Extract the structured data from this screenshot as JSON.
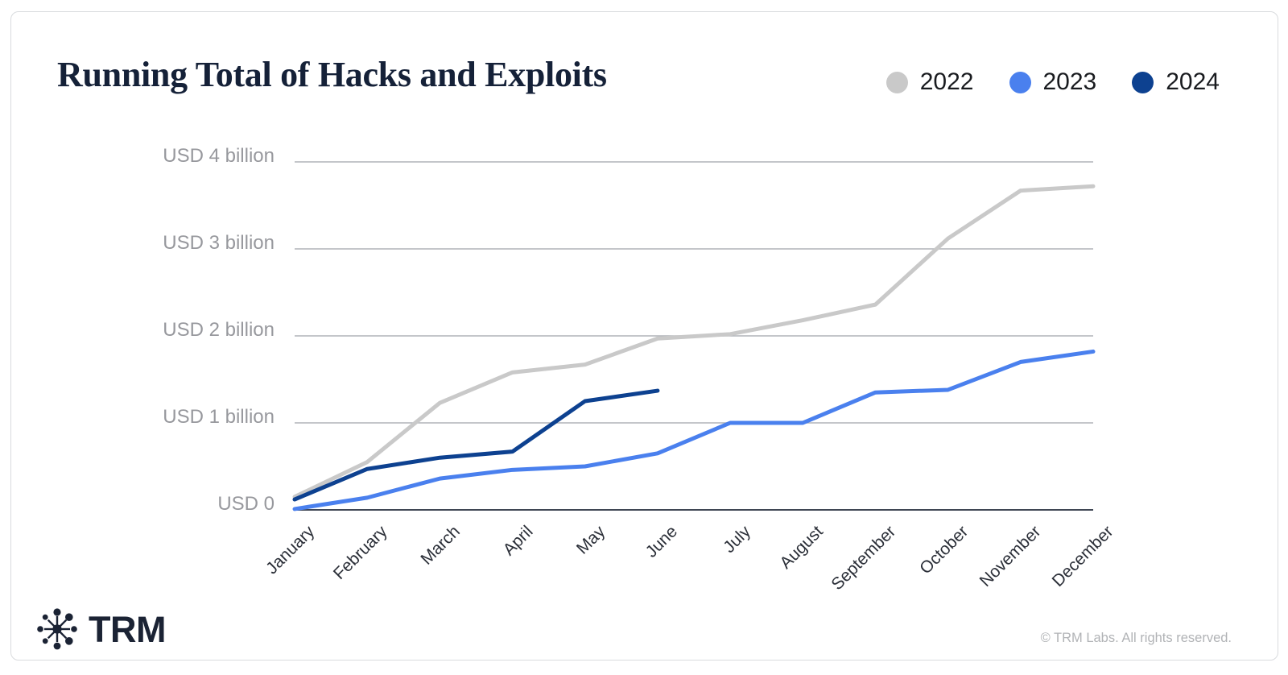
{
  "header": {
    "title": "Running Total of Hacks and Exploits"
  },
  "chart_data": {
    "type": "line",
    "title": "Running Total of Hacks and Exploits",
    "unit": "USD billions",
    "grid": true,
    "legend_position": "top-right",
    "ylim": [
      0,
      4
    ],
    "categories": [
      "January",
      "February",
      "March",
      "April",
      "May",
      "June",
      "July",
      "August",
      "September",
      "October",
      "November",
      "December"
    ],
    "y_ticks": [
      {
        "value": 0,
        "label": "USD 0"
      },
      {
        "value": 1,
        "label": "USD 1 billion"
      },
      {
        "value": 2,
        "label": "USD 2 billion"
      },
      {
        "value": 3,
        "label": "USD 3 billion"
      },
      {
        "value": 4,
        "label": "USD 4 billion"
      }
    ],
    "series": [
      {
        "name": "2022",
        "color": "#c9c9c9",
        "values": [
          0.15,
          0.55,
          1.23,
          1.58,
          1.67,
          1.97,
          2.02,
          2.18,
          2.36,
          3.12,
          3.67,
          3.72
        ]
      },
      {
        "name": "2023",
        "color": "#4a80ee",
        "values": [
          0.01,
          0.14,
          0.36,
          0.46,
          0.5,
          0.65,
          1.0,
          1.0,
          1.35,
          1.38,
          1.7,
          1.82
        ]
      },
      {
        "name": "2024",
        "color": "#0d4190",
        "values": [
          0.12,
          0.47,
          0.6,
          0.67,
          1.25,
          1.37
        ]
      }
    ]
  },
  "colors": {
    "gridline": "#b0b3b8",
    "axis_line": "#3f4654",
    "y_label": "#97989d",
    "x_label": "#2b2f38",
    "title": "#152138",
    "card_border": "#d9dbde",
    "copyright": "#b1b3b6"
  },
  "footer": {
    "brand": "TRM",
    "copyright": "© TRM Labs. All rights reserved."
  }
}
